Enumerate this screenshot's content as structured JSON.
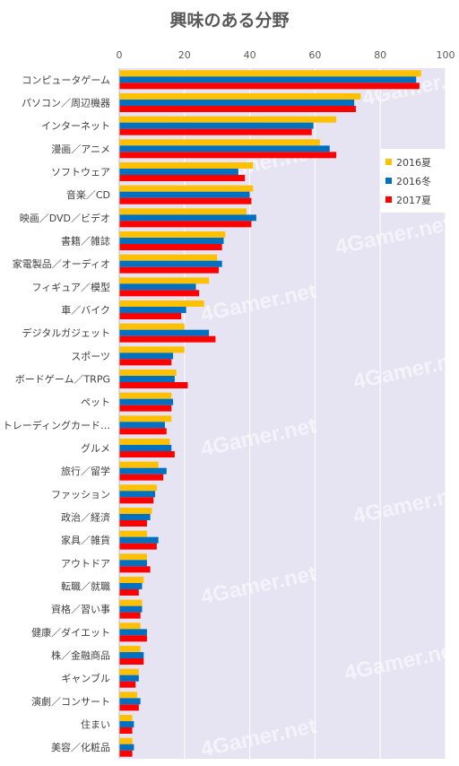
{
  "chart_data": {
    "type": "bar",
    "orientation": "horizontal",
    "title": "興味のある分野",
    "xlim": [
      0,
      100
    ],
    "xticks": [
      0,
      20,
      40,
      60,
      80,
      100
    ],
    "grid": true,
    "legend_position": "right",
    "watermark": "4Gamer.net",
    "categories": [
      "コンピュータゲーム",
      "パソコン／周辺機器",
      "インターネット",
      "漫画／アニメ",
      "ソフトウェア",
      "音楽／CD",
      "映画／DVD／ビデオ",
      "書籍／雑誌",
      "家電製品／オーディオ",
      "フィギュア／模型",
      "車／バイク",
      "デジタルガジェット",
      "スポーツ",
      "ボードゲーム／TRPG",
      "ペット",
      "トレーディングカード…",
      "グルメ",
      "旅行／留学",
      "ファッション",
      "政治／経済",
      "家具／雑貨",
      "アウトドア",
      "転職／就職",
      "資格／習い事",
      "健康／ダイエット",
      "株／金融商品",
      "ギャンブル",
      "演劇／コンサート",
      "住まい",
      "美容／化粧品"
    ],
    "series": [
      {
        "name": "2016夏",
        "color": "#FFC000",
        "values": [
          92.5,
          74,
          66.5,
          61.5,
          41,
          41,
          39,
          32.5,
          30,
          27.5,
          26,
          20,
          20,
          17.5,
          16,
          16,
          15.5,
          12,
          11.5,
          10,
          8.5,
          8.5,
          7.5,
          7,
          6.5,
          6.5,
          6,
          5.5,
          4,
          4
        ]
      },
      {
        "name": "2016冬",
        "color": "#0070C0",
        "values": [
          91,
          72,
          59.5,
          64.5,
          36.5,
          40,
          42,
          32,
          31.5,
          23.5,
          20.5,
          27.5,
          16.5,
          17,
          16.5,
          14,
          16,
          14.5,
          11,
          9.5,
          12,
          8.5,
          7,
          7,
          8.5,
          7.5,
          6,
          6.5,
          4.5,
          4.5
        ]
      },
      {
        "name": "2017夏",
        "color": "#FF0000",
        "values": [
          92,
          72.5,
          59,
          66.5,
          38.5,
          40.5,
          40.5,
          31.5,
          30.5,
          24.5,
          19,
          29.5,
          16,
          21,
          16,
          14.5,
          17,
          13.5,
          10.5,
          8.5,
          11.5,
          9.5,
          6,
          6.5,
          8.5,
          7.5,
          5,
          6,
          4,
          4
        ]
      }
    ]
  }
}
